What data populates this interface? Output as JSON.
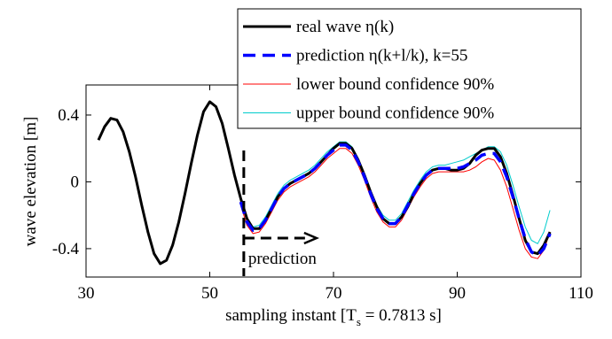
{
  "chart_data": {
    "type": "line",
    "ylabel": "wave elevation [m]",
    "xlabel": [
      "sampling instant [T",
      "s",
      " = 0.7813 s]"
    ],
    "xlim": [
      30,
      110
    ],
    "xticks": [
      30,
      50,
      70,
      90,
      110
    ],
    "ylim": [
      -0.57,
      0.58
    ],
    "yticks": [
      -0.4,
      0,
      0.4
    ],
    "legend": "top-right",
    "annotation": {
      "text": "prediction",
      "x": 55.5
    },
    "series": [
      {
        "name": "real wave η(k)",
        "color": "#000000",
        "style": "solid",
        "width": 3,
        "x": [
          32,
          33,
          34,
          35,
          36,
          37,
          38,
          39,
          40,
          41,
          42,
          43,
          44,
          45,
          46,
          47,
          48,
          49,
          50,
          51,
          52,
          53,
          54,
          55,
          56,
          57,
          58,
          59,
          60,
          61,
          62,
          63,
          64,
          65,
          66,
          67,
          68,
          69,
          70,
          71,
          72,
          73,
          74,
          75,
          76,
          77,
          78,
          79,
          80,
          81,
          82,
          83,
          84,
          85,
          86,
          87,
          88,
          89,
          90,
          91,
          92,
          93,
          94,
          95,
          96,
          97,
          98,
          99,
          100,
          101,
          102,
          103,
          104,
          105
        ],
        "values": [
          0.25,
          0.33,
          0.38,
          0.37,
          0.3,
          0.18,
          0.03,
          -0.14,
          -0.3,
          -0.43,
          -0.49,
          -0.47,
          -0.38,
          -0.24,
          -0.07,
          0.11,
          0.28,
          0.42,
          0.48,
          0.45,
          0.35,
          0.2,
          0.04,
          -0.1,
          -0.22,
          -0.28,
          -0.28,
          -0.23,
          -0.16,
          -0.09,
          -0.04,
          -0.01,
          0.01,
          0.03,
          0.05,
          0.08,
          0.12,
          0.16,
          0.2,
          0.23,
          0.23,
          0.2,
          0.13,
          0.04,
          -0.06,
          -0.15,
          -0.22,
          -0.25,
          -0.25,
          -0.21,
          -0.15,
          -0.07,
          -0.01,
          0.04,
          0.07,
          0.08,
          0.08,
          0.07,
          0.07,
          0.08,
          0.11,
          0.16,
          0.19,
          0.2,
          0.2,
          0.15,
          0.05,
          -0.08,
          -0.22,
          -0.35,
          -0.42,
          -0.43,
          -0.38,
          -0.3
        ]
      },
      {
        "name": "prediction η(k+l/k), k=55",
        "color": "#0000ff",
        "style": "dashed",
        "width": 3.5,
        "x": [
          55,
          56,
          57,
          58,
          59,
          60,
          61,
          62,
          63,
          64,
          65,
          66,
          67,
          68,
          69,
          70,
          71,
          72,
          73,
          74,
          75,
          76,
          77,
          78,
          79,
          80,
          81,
          82,
          83,
          84,
          85,
          86,
          87,
          88,
          89,
          90,
          91,
          92,
          93,
          94,
          95,
          96,
          97,
          98,
          99,
          100,
          101,
          102,
          103,
          104,
          105
        ],
        "values": [
          -0.12,
          -0.24,
          -0.29,
          -0.28,
          -0.23,
          -0.16,
          -0.09,
          -0.04,
          -0.01,
          0.01,
          0.03,
          0.05,
          0.08,
          0.12,
          0.16,
          0.19,
          0.22,
          0.22,
          0.19,
          0.12,
          0.03,
          -0.07,
          -0.16,
          -0.22,
          -0.25,
          -0.25,
          -0.21,
          -0.14,
          -0.07,
          -0.01,
          0.04,
          0.07,
          0.08,
          0.08,
          0.08,
          0.08,
          0.09,
          0.11,
          0.13,
          0.16,
          0.17,
          0.17,
          0.12,
          0.03,
          -0.09,
          -0.22,
          -0.34,
          -0.42,
          -0.44,
          -0.4,
          -0.31
        ]
      },
      {
        "name": "lower bound confidence 90%",
        "color": "#ff0000",
        "style": "solid",
        "width": 1,
        "x": [
          55,
          56,
          57,
          58,
          59,
          60,
          61,
          62,
          63,
          64,
          65,
          66,
          67,
          68,
          69,
          70,
          71,
          72,
          73,
          74,
          75,
          76,
          77,
          78,
          79,
          80,
          81,
          82,
          83,
          84,
          85,
          86,
          87,
          88,
          89,
          90,
          91,
          92,
          93,
          94,
          95,
          96,
          97,
          98,
          99,
          100,
          101,
          102,
          103,
          104,
          105
        ],
        "values": [
          -0.14,
          -0.26,
          -0.31,
          -0.3,
          -0.25,
          -0.18,
          -0.11,
          -0.06,
          -0.03,
          -0.01,
          0.01,
          0.03,
          0.06,
          0.1,
          0.14,
          0.17,
          0.2,
          0.2,
          0.17,
          0.1,
          0.01,
          -0.09,
          -0.18,
          -0.24,
          -0.27,
          -0.27,
          -0.23,
          -0.16,
          -0.09,
          -0.03,
          0.02,
          0.05,
          0.06,
          0.06,
          0.06,
          0.06,
          0.06,
          0.07,
          0.09,
          0.12,
          0.14,
          0.13,
          0.07,
          -0.03,
          -0.16,
          -0.29,
          -0.4,
          -0.45,
          -0.46,
          -0.41,
          -0.3
        ]
      },
      {
        "name": "upper bound confidence 90%",
        "color": "#00cccc",
        "style": "solid",
        "width": 1,
        "x": [
          55,
          56,
          57,
          58,
          59,
          60,
          61,
          62,
          63,
          64,
          65,
          66,
          67,
          68,
          69,
          70,
          71,
          72,
          73,
          74,
          75,
          76,
          77,
          78,
          79,
          80,
          81,
          82,
          83,
          84,
          85,
          86,
          87,
          88,
          89,
          90,
          91,
          92,
          93,
          94,
          95,
          96,
          97,
          98,
          99,
          100,
          101,
          102,
          103,
          104,
          105
        ],
        "values": [
          -0.1,
          -0.22,
          -0.27,
          -0.26,
          -0.21,
          -0.14,
          -0.07,
          -0.02,
          0.01,
          0.03,
          0.05,
          0.07,
          0.1,
          0.14,
          0.18,
          0.21,
          0.24,
          0.24,
          0.21,
          0.14,
          0.05,
          -0.05,
          -0.14,
          -0.2,
          -0.23,
          -0.23,
          -0.19,
          -0.12,
          -0.05,
          0.01,
          0.06,
          0.09,
          0.1,
          0.1,
          0.11,
          0.12,
          0.13,
          0.15,
          0.17,
          0.19,
          0.21,
          0.21,
          0.18,
          0.1,
          -0.02,
          -0.15,
          -0.27,
          -0.35,
          -0.37,
          -0.3,
          -0.17
        ]
      }
    ]
  }
}
